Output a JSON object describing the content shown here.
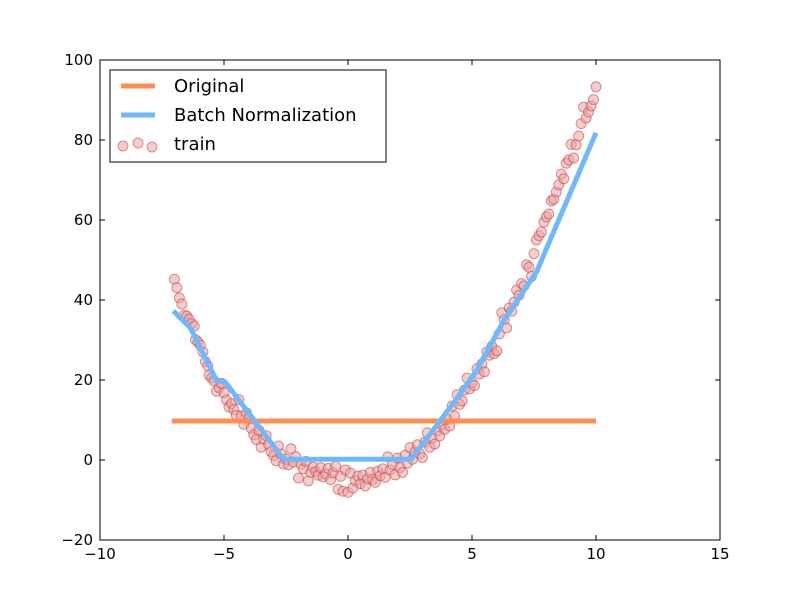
{
  "chart_data": {
    "type": "line",
    "title": "",
    "xlabel": "",
    "ylabel": "",
    "xlim": [
      -10,
      15
    ],
    "ylim": [
      -20,
      100
    ],
    "xticks": [
      -10,
      -5,
      0,
      5,
      10,
      15
    ],
    "yticks": [
      -20,
      0,
      20,
      40,
      60,
      80,
      100
    ],
    "xtick_labels": [
      "−10",
      "−5",
      "0",
      "5",
      "10",
      "15"
    ],
    "ytick_labels": [
      "−20",
      "0",
      "20",
      "40",
      "60",
      "80",
      "100"
    ],
    "grid": false,
    "legend": {
      "placement": "top-left",
      "entries": [
        "Original",
        "Batch Normalization",
        "train"
      ]
    },
    "colors": {
      "original": "#ff8c50",
      "batch_norm": "#6db9ff",
      "train_fill": "#f4a0a0",
      "train_edge": "#b05050"
    },
    "series": [
      {
        "name": "Original",
        "kind": "line",
        "x": [
          -7.1,
          10.0
        ],
        "y": [
          9.75,
          9.75
        ]
      },
      {
        "name": "Batch Normalization",
        "kind": "line",
        "x": [
          -7.05,
          -6.35,
          -5.3,
          -4.95,
          -2.6,
          2.55,
          4.2,
          5.2,
          6.3,
          7.6,
          10.0
        ],
        "y": [
          37.3,
          33.0,
          19.8,
          19.5,
          0.2,
          0.2,
          13.8,
          22.5,
          35.0,
          47.0,
          81.8
        ]
      },
      {
        "name": "train",
        "kind": "scatter",
        "points": [
          [
            -7.0,
            45.2
          ],
          [
            -6.9,
            43.1
          ],
          [
            -6.8,
            40.5
          ],
          [
            -6.7,
            39.0
          ],
          [
            -6.6,
            36.2
          ],
          [
            -6.5,
            36.0
          ],
          [
            -6.4,
            35.2
          ],
          [
            -6.3,
            34.1
          ],
          [
            -6.2,
            33.5
          ],
          [
            -6.15,
            30.1
          ],
          [
            -6.05,
            29.5
          ],
          [
            -5.95,
            28.7
          ],
          [
            -5.85,
            27.0
          ],
          [
            -5.75,
            24.6
          ],
          [
            -5.65,
            23.5
          ],
          [
            -5.6,
            21.2
          ],
          [
            -5.5,
            20.5
          ],
          [
            -5.4,
            19.8
          ],
          [
            -5.3,
            17.2
          ],
          [
            -5.2,
            18.1
          ],
          [
            -5.1,
            19.2
          ],
          [
            -5.0,
            16.8
          ],
          [
            -4.9,
            15.0
          ],
          [
            -4.8,
            13.3
          ],
          [
            -4.7,
            14.1
          ],
          [
            -4.6,
            12.6
          ],
          [
            -4.5,
            11.2
          ],
          [
            -4.4,
            15.1
          ],
          [
            -4.3,
            11.0
          ],
          [
            -4.2,
            8.9
          ],
          [
            -4.1,
            11.8
          ],
          [
            -4.0,
            10.5
          ],
          [
            -3.9,
            7.9
          ],
          [
            -3.8,
            6.3
          ],
          [
            -3.7,
            5.1
          ],
          [
            -3.6,
            7.5
          ],
          [
            -3.5,
            3.2
          ],
          [
            -3.4,
            5.2
          ],
          [
            -3.3,
            6.1
          ],
          [
            -3.2,
            3.8
          ],
          [
            -3.1,
            2.1
          ],
          [
            -3.0,
            1.1
          ],
          [
            -2.9,
            -0.2
          ],
          [
            -2.8,
            3.5
          ],
          [
            -2.7,
            1.5
          ],
          [
            -2.6,
            -1.0
          ],
          [
            -2.5,
            0.2
          ],
          [
            -2.4,
            -1.2
          ],
          [
            -2.3,
            2.8
          ],
          [
            -2.2,
            -0.5
          ],
          [
            -2.1,
            0.8
          ],
          [
            -2.0,
            -4.5
          ],
          [
            -1.9,
            -1.1
          ],
          [
            -1.8,
            -2.2
          ],
          [
            -1.7,
            -0.3
          ],
          [
            -1.6,
            -5.2
          ],
          [
            -1.5,
            -3.1
          ],
          [
            -1.4,
            -1.8
          ],
          [
            -1.3,
            -2.9
          ],
          [
            -1.2,
            -3.8
          ],
          [
            -1.1,
            -1.9
          ],
          [
            -1.0,
            -4.2
          ],
          [
            -0.9,
            -3.5
          ],
          [
            -0.8,
            -2.1
          ],
          [
            -0.7,
            -4.9
          ],
          [
            -0.6,
            -3.2
          ],
          [
            -0.5,
            -1.6
          ],
          [
            -0.4,
            -7.3
          ],
          [
            -0.3,
            -4.1
          ],
          [
            -0.2,
            -7.8
          ],
          [
            -0.1,
            -2.5
          ],
          [
            0.0,
            -8.1
          ],
          [
            0.1,
            -3.3
          ],
          [
            0.2,
            -7.0
          ],
          [
            0.3,
            -5.2
          ],
          [
            0.4,
            -4.0
          ],
          [
            0.5,
            -5.9
          ],
          [
            0.6,
            -3.8
          ],
          [
            0.7,
            -6.5
          ],
          [
            0.8,
            -4.7
          ],
          [
            0.9,
            -3.1
          ],
          [
            1.0,
            -4.9
          ],
          [
            1.1,
            -5.6
          ],
          [
            1.2,
            -2.8
          ],
          [
            1.3,
            -3.9
          ],
          [
            1.4,
            -2.2
          ],
          [
            1.5,
            -4.3
          ],
          [
            1.6,
            0.8
          ],
          [
            1.7,
            -2.5
          ],
          [
            1.8,
            -1.1
          ],
          [
            1.9,
            -3.7
          ],
          [
            2.0,
            0.5
          ],
          [
            2.1,
            -1.9
          ],
          [
            2.2,
            -3.1
          ],
          [
            2.3,
            1.2
          ],
          [
            2.4,
            -0.8
          ],
          [
            2.5,
            3.1
          ],
          [
            2.6,
            0.2
          ],
          [
            2.7,
            2.0
          ],
          [
            2.8,
            3.8
          ],
          [
            2.9,
            1.5
          ],
          [
            3.0,
            0.6
          ],
          [
            3.1,
            4.5
          ],
          [
            3.2,
            6.8
          ],
          [
            3.3,
            3.2
          ],
          [
            3.4,
            5.5
          ],
          [
            3.5,
            4.0
          ],
          [
            3.6,
            7.3
          ],
          [
            3.7,
            6.0
          ],
          [
            3.8,
            8.8
          ],
          [
            3.9,
            7.7
          ],
          [
            4.0,
            10.2
          ],
          [
            4.1,
            8.5
          ],
          [
            4.2,
            13.5
          ],
          [
            4.3,
            11.0
          ],
          [
            4.4,
            16.3
          ],
          [
            4.5,
            13.9
          ],
          [
            4.6,
            14.8
          ],
          [
            4.7,
            17.5
          ],
          [
            4.8,
            20.5
          ],
          [
            4.9,
            17.8
          ],
          [
            5.0,
            19.3
          ],
          [
            5.1,
            18.6
          ],
          [
            5.2,
            22.8
          ],
          [
            5.3,
            21.5
          ],
          [
            5.4,
            24.0
          ],
          [
            5.5,
            22.1
          ],
          [
            5.6,
            27.0
          ],
          [
            5.7,
            26.2
          ],
          [
            5.8,
            28.4
          ],
          [
            5.9,
            26.6
          ],
          [
            6.0,
            27.3
          ],
          [
            6.1,
            31.5
          ],
          [
            6.2,
            36.8
          ],
          [
            6.3,
            35.1
          ],
          [
            6.4,
            33.0
          ],
          [
            6.5,
            38.0
          ],
          [
            6.6,
            37.2
          ],
          [
            6.7,
            39.5
          ],
          [
            6.8,
            42.5
          ],
          [
            6.9,
            41.2
          ],
          [
            7.0,
            44.1
          ],
          [
            7.1,
            43.5
          ],
          [
            7.2,
            48.8
          ],
          [
            7.3,
            48.2
          ],
          [
            7.4,
            45.9
          ],
          [
            7.5,
            51.6
          ],
          [
            7.6,
            55.0
          ],
          [
            7.7,
            56.1
          ],
          [
            7.8,
            57.0
          ],
          [
            7.9,
            59.5
          ],
          [
            8.0,
            60.8
          ],
          [
            8.1,
            61.5
          ],
          [
            8.2,
            64.8
          ],
          [
            8.3,
            65.2
          ],
          [
            8.4,
            67.0
          ],
          [
            8.5,
            68.8
          ],
          [
            8.6,
            71.5
          ],
          [
            8.7,
            70.3
          ],
          [
            8.8,
            74.2
          ],
          [
            8.9,
            75.0
          ],
          [
            9.0,
            78.9
          ],
          [
            9.1,
            75.5
          ],
          [
            9.2,
            78.8
          ],
          [
            9.3,
            81.0
          ],
          [
            9.4,
            84.1
          ],
          [
            9.5,
            88.2
          ],
          [
            9.6,
            85.5
          ],
          [
            9.7,
            87.0
          ],
          [
            9.8,
            88.5
          ],
          [
            9.9,
            90.1
          ],
          [
            10.0,
            93.3
          ]
        ]
      }
    ]
  }
}
